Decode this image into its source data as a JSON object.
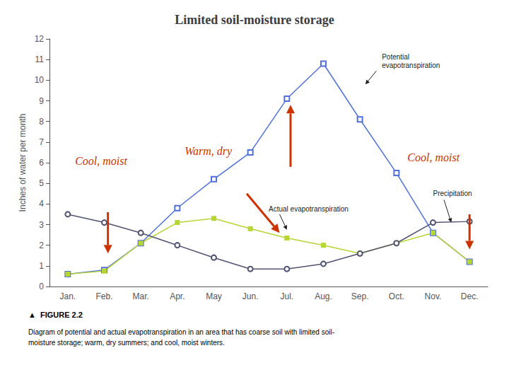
{
  "chart_data": {
    "type": "line",
    "title": "Limited soil-moisture storage",
    "ylabel": "Inches of water per month",
    "categories": [
      "Jan.",
      "Feb.",
      "Mar.",
      "Apr.",
      "May",
      "Jun.",
      "Jul.",
      "Aug.",
      "Sep.",
      "Oct.",
      "Nov.",
      "Dec."
    ],
    "series": [
      {
        "name": "Potential\nevapotranspiration",
        "marker": "open_square",
        "values": [
          0.6,
          0.8,
          2.1,
          3.8,
          5.2,
          6.5,
          9.1,
          10.8,
          8.1,
          5.5,
          2.6,
          1.2
        ]
      },
      {
        "name": "Actual evapotranspiration",
        "marker": "square",
        "values": [
          0.6,
          0.75,
          2.1,
          3.1,
          3.3,
          2.8,
          2.35,
          2.0,
          1.6,
          2.1,
          2.6,
          1.2
        ]
      },
      {
        "name": "Precipitation",
        "marker": "open_circle",
        "values": [
          3.5,
          3.1,
          2.6,
          2.0,
          1.4,
          0.85,
          0.85,
          1.1,
          1.6,
          2.1,
          3.1,
          3.15
        ]
      }
    ],
    "ylim": [
      0,
      12
    ],
    "yticks": [
      0,
      1,
      2,
      3,
      4,
      5,
      6,
      7,
      8,
      9,
      10,
      11,
      12
    ],
    "grid": false,
    "annotations": [
      {
        "text": "Cool, moist",
        "color": "#cc3300"
      },
      {
        "text": "Warm, dry",
        "color": "#cc3300"
      },
      {
        "text": "Cool, moist",
        "color": "#cc3300"
      }
    ],
    "caption": "▲  FIGURE 2.2",
    "description": "Diagram of potential and actual evapotranspiration in an area that has coarse soil with limited soil-\nmoisture storage; warm, dry summers; and cool, moist winters."
  }
}
